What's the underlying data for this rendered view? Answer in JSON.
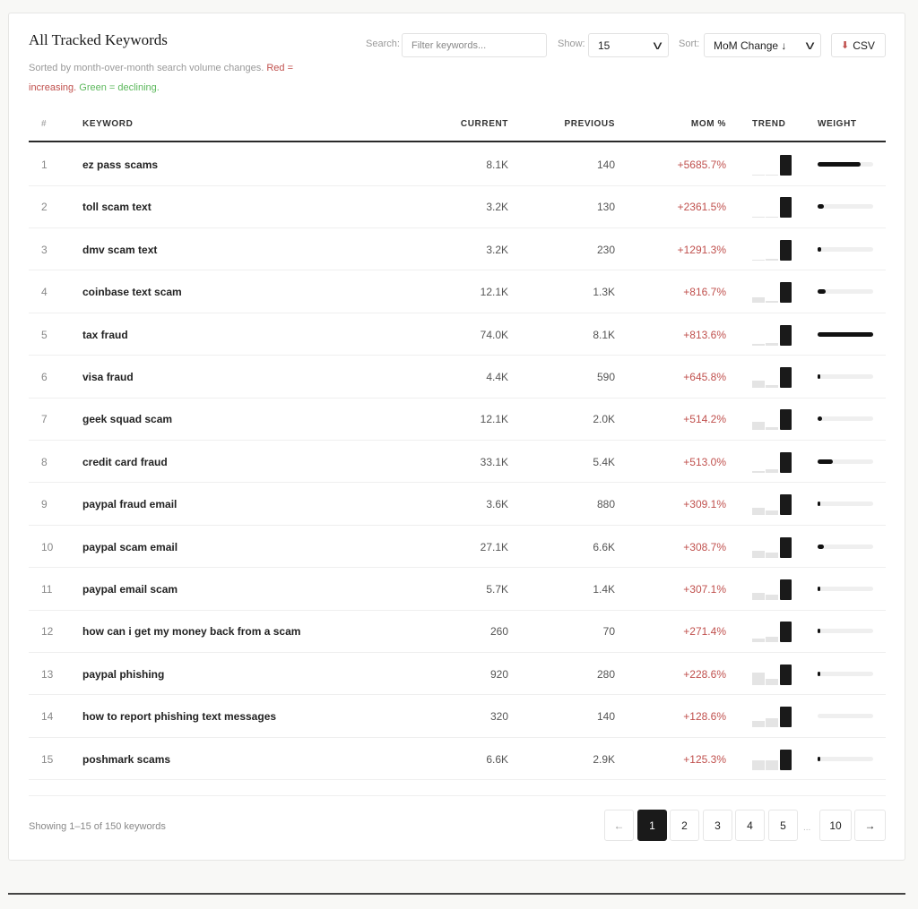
{
  "title": "All Tracked Keywords",
  "subtitle": {
    "text": "Sorted by month-over-month search volume changes. ",
    "red": "Red = increasing.",
    "green": " Green = declining."
  },
  "controls": {
    "search_label": "Search:",
    "search_placeholder": "Filter keywords...",
    "search_value": "",
    "show_label": "Show:",
    "show_value": "15",
    "sort_label": "Sort:",
    "sort_value": "MoM Change ↓",
    "csv_label": "CSV",
    "csv_icon": "download-icon"
  },
  "columns": [
    "#",
    "KEYWORD",
    "CURRENT",
    "PREVIOUS",
    "MOM %",
    "TREND",
    "WEIGHT"
  ],
  "rows": [
    {
      "n": "1",
      "kw": "ez pass scams",
      "cur": "8.1K",
      "prev": "140",
      "mom": "+5685.7%",
      "trend": [
        0.03,
        0.03,
        1
      ],
      "weight": 0.78
    },
    {
      "n": "2",
      "kw": "toll scam text",
      "cur": "3.2K",
      "prev": "130",
      "mom": "+2361.5%",
      "trend": [
        0.03,
        0.04,
        1
      ],
      "weight": 0.12
    },
    {
      "n": "3",
      "kw": "dmv scam text",
      "cur": "3.2K",
      "prev": "230",
      "mom": "+1291.3%",
      "trend": [
        0.03,
        0.07,
        1
      ],
      "weight": 0.06
    },
    {
      "n": "4",
      "kw": "coinbase text scam",
      "cur": "12.1K",
      "prev": "1.3K",
      "mom": "+816.7%",
      "trend": [
        0.28,
        0.1,
        1
      ],
      "weight": 0.14
    },
    {
      "n": "5",
      "kw": "tax fraud",
      "cur": "74.0K",
      "prev": "8.1K",
      "mom": "+813.6%",
      "trend": [
        0.05,
        0.11,
        1
      ],
      "weight": 1.0
    },
    {
      "n": "6",
      "kw": "visa fraud",
      "cur": "4.4K",
      "prev": "590",
      "mom": "+645.8%",
      "trend": [
        0.35,
        0.13,
        1
      ],
      "weight": 0.04
    },
    {
      "n": "7",
      "kw": "geek squad scam",
      "cur": "12.1K",
      "prev": "2.0K",
      "mom": "+514.2%",
      "trend": [
        0.4,
        0.16,
        1
      ],
      "weight": 0.08
    },
    {
      "n": "8",
      "kw": "credit card fraud",
      "cur": "33.1K",
      "prev": "5.4K",
      "mom": "+513.0%",
      "trend": [
        0.1,
        0.16,
        1
      ],
      "weight": 0.28
    },
    {
      "n": "9",
      "kw": "paypal fraud email",
      "cur": "3.6K",
      "prev": "880",
      "mom": "+309.1%",
      "trend": [
        0.35,
        0.24,
        1
      ],
      "weight": 0.03
    },
    {
      "n": "10",
      "kw": "paypal scam email",
      "cur": "27.1K",
      "prev": "6.6K",
      "mom": "+308.7%",
      "trend": [
        0.35,
        0.24,
        1
      ],
      "weight": 0.12
    },
    {
      "n": "11",
      "kw": "paypal email scam",
      "cur": "5.7K",
      "prev": "1.4K",
      "mom": "+307.1%",
      "trend": [
        0.35,
        0.25,
        1
      ],
      "weight": 0.04
    },
    {
      "n": "12",
      "kw": "how can i get my money back from a scam",
      "cur": "260",
      "prev": "70",
      "mom": "+271.4%",
      "trend": [
        0.2,
        0.27,
        1
      ],
      "weight": 0.02
    },
    {
      "n": "13",
      "kw": "paypal phishing",
      "cur": "920",
      "prev": "280",
      "mom": "+228.6%",
      "trend": [
        0.6,
        0.3,
        1
      ],
      "weight": 0.03
    },
    {
      "n": "14",
      "kw": "how to report phishing text messages",
      "cur": "320",
      "prev": "140",
      "mom": "+128.6%",
      "trend": [
        0.3,
        0.44,
        1
      ],
      "weight": 0.0
    },
    {
      "n": "15",
      "kw": "poshmark scams",
      "cur": "6.6K",
      "prev": "2.9K",
      "mom": "+125.3%",
      "trend": [
        0.45,
        0.44,
        1
      ],
      "weight": 0.04
    }
  ],
  "footer": {
    "showing": "Showing 1–15 of 150 keywords",
    "prev": "←",
    "pages": [
      "1",
      "2",
      "3",
      "4",
      "5"
    ],
    "ellipsis": "...",
    "last": "10",
    "next": "→",
    "active_page": "1"
  }
}
